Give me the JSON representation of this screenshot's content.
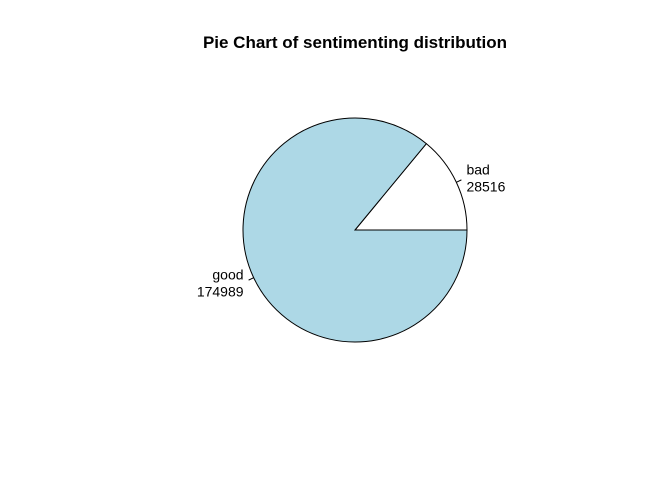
{
  "chart_data": {
    "type": "pie",
    "title": "Pie Chart of sentimenting distribution",
    "slices": [
      {
        "label": "bad",
        "value": 28516,
        "color": "#ffffff"
      },
      {
        "label": "good",
        "value": 174989,
        "color": "#add8e6"
      }
    ],
    "direction": "counterclockwise",
    "start": "3 o'clock",
    "border_color": "#000000"
  }
}
